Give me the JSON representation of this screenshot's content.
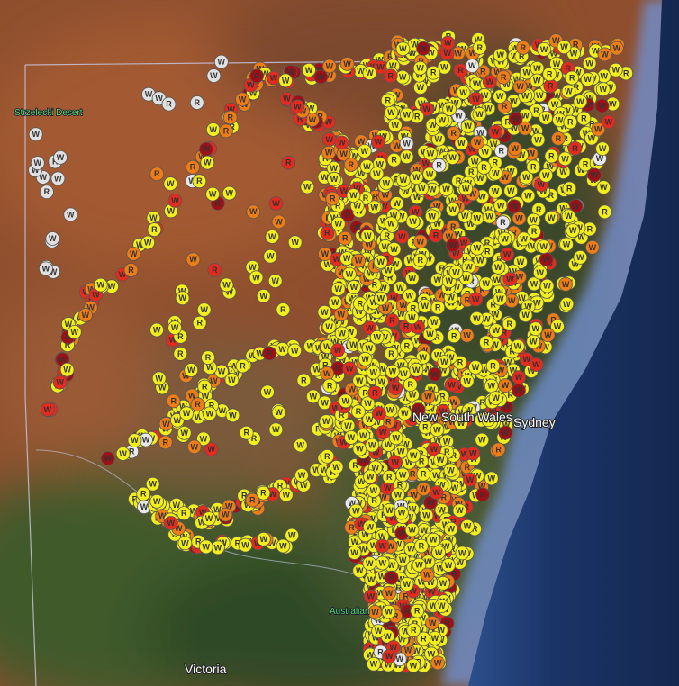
{
  "map": {
    "places": {
      "desert": "Strzelecki Desert",
      "state": "New South Wales",
      "city": "Sydney",
      "territory": "Australian",
      "south_state": "Victoria"
    },
    "marker_labels": [
      "W",
      "R"
    ]
  }
}
